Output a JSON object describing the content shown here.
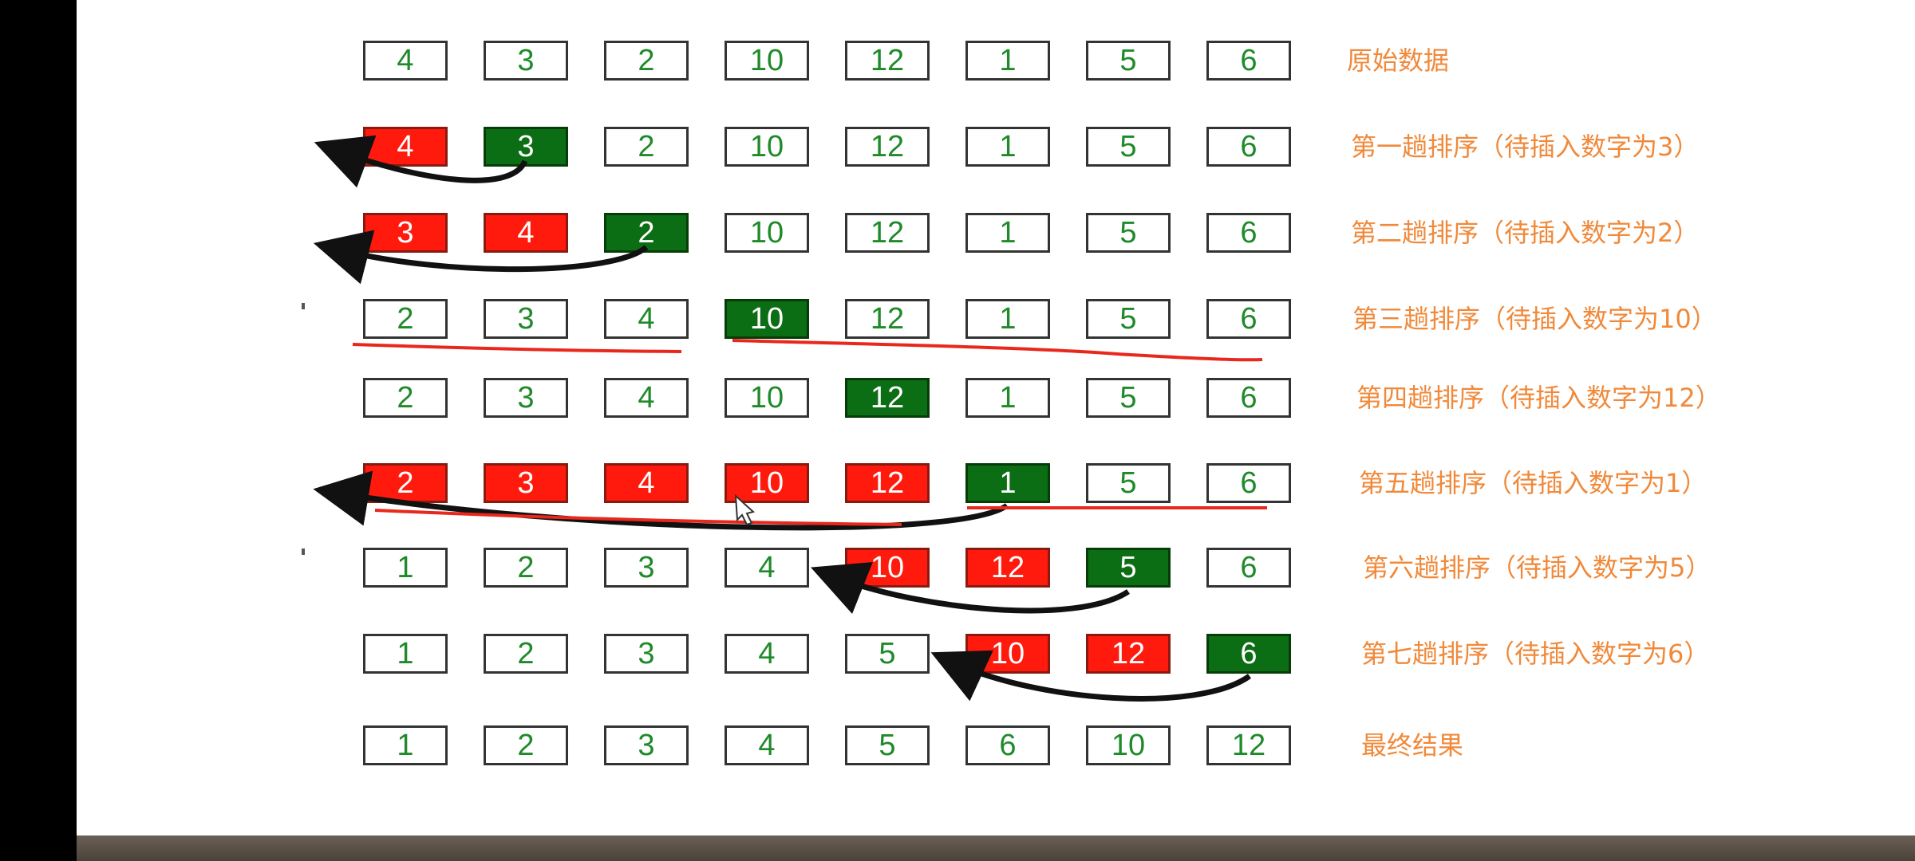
{
  "colors": {
    "red": "#ff1a0d",
    "green": "#0c6e14",
    "text_green": "#1f8a2a",
    "label": "#f0893a",
    "arrow": "#111111",
    "underline": "#e8281c"
  },
  "rows": [
    {
      "label": "原始数据",
      "cells": [
        {
          "v": "4",
          "s": "plain"
        },
        {
          "v": "3",
          "s": "plain"
        },
        {
          "v": "2",
          "s": "plain"
        },
        {
          "v": "10",
          "s": "plain"
        },
        {
          "v": "12",
          "s": "plain"
        },
        {
          "v": "1",
          "s": "plain"
        },
        {
          "v": "5",
          "s": "plain"
        },
        {
          "v": "6",
          "s": "plain"
        }
      ]
    },
    {
      "label": "第一趟排序（待插入数字为3）",
      "cells": [
        {
          "v": "4",
          "s": "red"
        },
        {
          "v": "3",
          "s": "green"
        },
        {
          "v": "2",
          "s": "plain"
        },
        {
          "v": "10",
          "s": "plain"
        },
        {
          "v": "12",
          "s": "plain"
        },
        {
          "v": "1",
          "s": "plain"
        },
        {
          "v": "5",
          "s": "plain"
        },
        {
          "v": "6",
          "s": "plain"
        }
      ]
    },
    {
      "label": "第二趟排序（待插入数字为2）",
      "cells": [
        {
          "v": "3",
          "s": "red"
        },
        {
          "v": "4",
          "s": "red"
        },
        {
          "v": "2",
          "s": "green"
        },
        {
          "v": "10",
          "s": "plain"
        },
        {
          "v": "12",
          "s": "plain"
        },
        {
          "v": "1",
          "s": "plain"
        },
        {
          "v": "5",
          "s": "plain"
        },
        {
          "v": "6",
          "s": "plain"
        }
      ]
    },
    {
      "label": "第三趟排序（待插入数字为10）",
      "cells": [
        {
          "v": "2",
          "s": "plain"
        },
        {
          "v": "3",
          "s": "plain"
        },
        {
          "v": "4",
          "s": "plain"
        },
        {
          "v": "10",
          "s": "green"
        },
        {
          "v": "12",
          "s": "plain"
        },
        {
          "v": "1",
          "s": "plain"
        },
        {
          "v": "5",
          "s": "plain"
        },
        {
          "v": "6",
          "s": "plain"
        }
      ]
    },
    {
      "label": "第四趟排序（待插入数字为12）",
      "cells": [
        {
          "v": "2",
          "s": "plain"
        },
        {
          "v": "3",
          "s": "plain"
        },
        {
          "v": "4",
          "s": "plain"
        },
        {
          "v": "10",
          "s": "plain"
        },
        {
          "v": "12",
          "s": "green"
        },
        {
          "v": "1",
          "s": "plain"
        },
        {
          "v": "5",
          "s": "plain"
        },
        {
          "v": "6",
          "s": "plain"
        }
      ]
    },
    {
      "label": "第五趟排序（待插入数字为1）",
      "cells": [
        {
          "v": "2",
          "s": "red"
        },
        {
          "v": "3",
          "s": "red"
        },
        {
          "v": "4",
          "s": "red"
        },
        {
          "v": "10",
          "s": "red"
        },
        {
          "v": "12",
          "s": "red"
        },
        {
          "v": "1",
          "s": "green"
        },
        {
          "v": "5",
          "s": "plain"
        },
        {
          "v": "6",
          "s": "plain"
        }
      ]
    },
    {
      "label": "第六趟排序（待插入数字为5）",
      "cells": [
        {
          "v": "1",
          "s": "plain"
        },
        {
          "v": "2",
          "s": "plain"
        },
        {
          "v": "3",
          "s": "plain"
        },
        {
          "v": "4",
          "s": "plain"
        },
        {
          "v": "10",
          "s": "red"
        },
        {
          "v": "12",
          "s": "red"
        },
        {
          "v": "5",
          "s": "green"
        },
        {
          "v": "6",
          "s": "plain"
        }
      ]
    },
    {
      "label": "第七趟排序（待插入数字为6）",
      "cells": [
        {
          "v": "1",
          "s": "plain"
        },
        {
          "v": "2",
          "s": "plain"
        },
        {
          "v": "3",
          "s": "plain"
        },
        {
          "v": "4",
          "s": "plain"
        },
        {
          "v": "5",
          "s": "plain"
        },
        {
          "v": "10",
          "s": "red"
        },
        {
          "v": "12",
          "s": "red"
        },
        {
          "v": "6",
          "s": "green"
        }
      ]
    },
    {
      "label": "最终结果",
      "cells": [
        {
          "v": "1",
          "s": "plain"
        },
        {
          "v": "2",
          "s": "plain"
        },
        {
          "v": "3",
          "s": "plain"
        },
        {
          "v": "4",
          "s": "plain"
        },
        {
          "v": "5",
          "s": "plain"
        },
        {
          "v": "6",
          "s": "plain"
        },
        {
          "v": "10",
          "s": "plain"
        },
        {
          "v": "12",
          "s": "plain"
        }
      ]
    }
  ]
}
